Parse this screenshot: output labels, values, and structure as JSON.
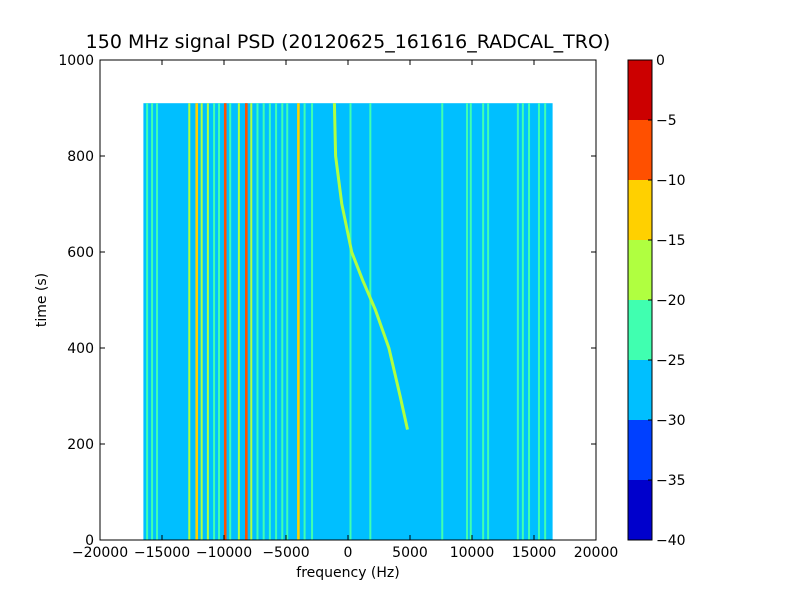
{
  "chart_data": {
    "type": "heatmap",
    "title": "150 MHz signal PSD (20120625_161616_RADCAL_TRO)",
    "xlabel": "frequency (Hz)",
    "ylabel": "time (s)",
    "xlim": [
      -20000,
      20000
    ],
    "ylim": [
      0,
      1000
    ],
    "xticks": [
      -20000,
      -15000,
      -10000,
      -5000,
      0,
      5000,
      10000,
      15000,
      20000
    ],
    "yticks": [
      0,
      200,
      400,
      600,
      800,
      1000
    ],
    "data_extent": {
      "x": [
        -16500,
        16500
      ],
      "y": [
        0,
        910
      ]
    },
    "background_level_db": -27.5,
    "colorbar": {
      "levels": [
        -40,
        -35,
        -30,
        -25,
        -20,
        -15,
        -10,
        -5,
        0
      ],
      "colors": [
        "#0000cc",
        "#0040ff",
        "#00bfff",
        "#40ffb0",
        "#b0ff40",
        "#ffd000",
        "#ff5000",
        "#cc0000"
      ],
      "ticks": [
        0,
        -5,
        -10,
        -15,
        -20,
        -25,
        -30,
        -35,
        -40
      ]
    },
    "constant_lines": [
      {
        "freq": -16200,
        "level_db": -22.5
      },
      {
        "freq": -15800,
        "level_db": -22.5
      },
      {
        "freq": -15400,
        "level_db": -22.5
      },
      {
        "freq": -12800,
        "level_db": -17.5
      },
      {
        "freq": -12200,
        "level_db": -12.5
      },
      {
        "freq": -11800,
        "level_db": -17.5
      },
      {
        "freq": -11300,
        "level_db": -17.5
      },
      {
        "freq": -10800,
        "level_db": -22.5
      },
      {
        "freq": -10400,
        "level_db": -22.5
      },
      {
        "freq": -9900,
        "level_db": -7.5
      },
      {
        "freq": -9500,
        "level_db": -22.5
      },
      {
        "freq": -8800,
        "level_db": -17.5
      },
      {
        "freq": -8200,
        "level_db": -7.5
      },
      {
        "freq": -7800,
        "level_db": -17.5
      },
      {
        "freq": -7300,
        "level_db": -22.5
      },
      {
        "freq": -6800,
        "level_db": -22.5
      },
      {
        "freq": -6300,
        "level_db": -22.5
      },
      {
        "freq": -5800,
        "level_db": -22.5
      },
      {
        "freq": -5300,
        "level_db": -22.5
      },
      {
        "freq": -4900,
        "level_db": -22.5
      },
      {
        "freq": -4000,
        "level_db": -12.5
      },
      {
        "freq": -3500,
        "level_db": -22.5
      },
      {
        "freq": -2900,
        "level_db": -22.5
      },
      {
        "freq": 200,
        "level_db": -22.5
      },
      {
        "freq": 1800,
        "level_db": -22.5
      },
      {
        "freq": 7600,
        "level_db": -22.5
      },
      {
        "freq": 9600,
        "level_db": -22.5
      },
      {
        "freq": 9900,
        "level_db": -22.5
      },
      {
        "freq": 10900,
        "level_db": -22.5
      },
      {
        "freq": 11300,
        "level_db": -22.5
      },
      {
        "freq": 13700,
        "level_db": -22.5
      },
      {
        "freq": 14100,
        "level_db": -22.5
      },
      {
        "freq": 14600,
        "level_db": -22.5
      },
      {
        "freq": 15400,
        "level_db": -22.5
      },
      {
        "freq": 15900,
        "level_db": -22.5
      }
    ],
    "drifting_signal": {
      "level_db": -17.5,
      "points": [
        {
          "time": 230,
          "freq": 4800
        },
        {
          "time": 300,
          "freq": 4200
        },
        {
          "time": 400,
          "freq": 3300
        },
        {
          "time": 480,
          "freq": 2200
        },
        {
          "time": 540,
          "freq": 1200
        },
        {
          "time": 600,
          "freq": 300
        },
        {
          "time": 700,
          "freq": -500
        },
        {
          "time": 800,
          "freq": -1000
        },
        {
          "time": 910,
          "freq": -1100
        }
      ]
    }
  }
}
